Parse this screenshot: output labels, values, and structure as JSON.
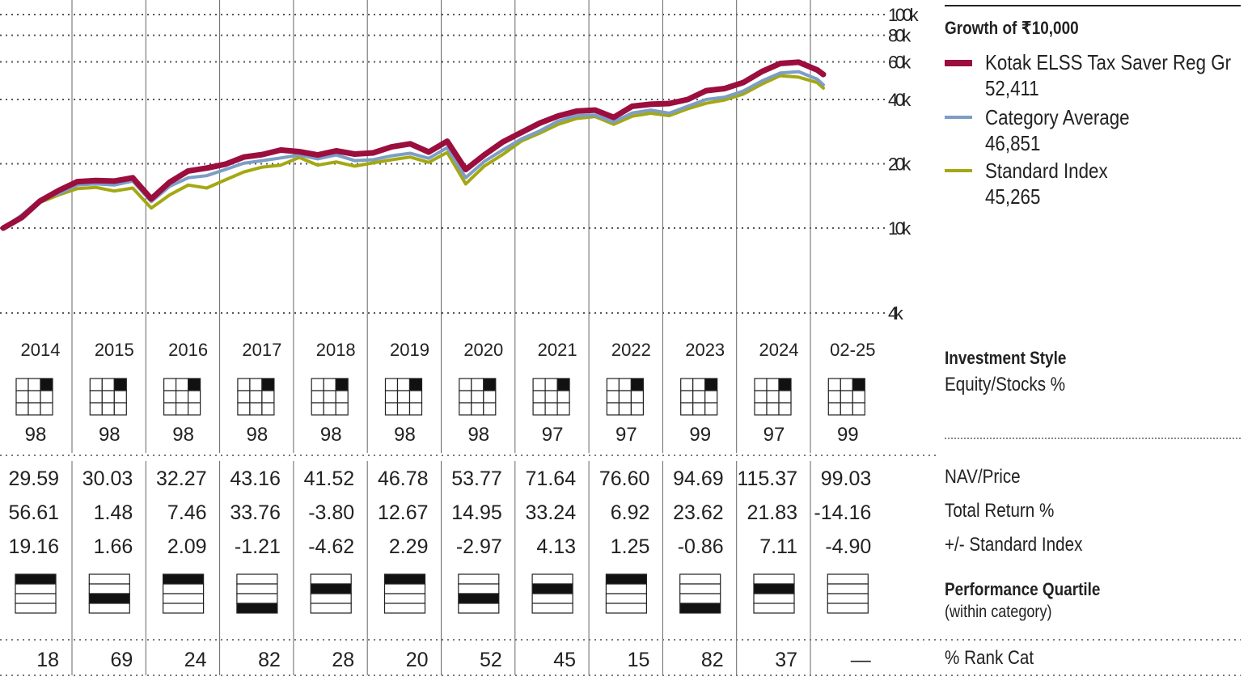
{
  "chart_data": {
    "type": "line",
    "title": "Growth of ₹10,000",
    "y_scale": "log",
    "ylim": [
      4000,
      100000
    ],
    "y_ticks": [
      {
        "value": 100000,
        "label": "100k"
      },
      {
        "value": 80000,
        "label": "80k"
      },
      {
        "value": 60000,
        "label": "60k"
      },
      {
        "value": 40000,
        "label": "40k"
      },
      {
        "value": 20000,
        "label": "20k"
      },
      {
        "value": 10000,
        "label": "10k"
      },
      {
        "value": 4000,
        "label": "4k"
      }
    ],
    "xlim": [
      "2014-01",
      "2025-02"
    ],
    "x": [
      "2014-01",
      "2014-04",
      "2014-07",
      "2014-10",
      "2015-01",
      "2015-04",
      "2015-07",
      "2015-10",
      "2016-01",
      "2016-04",
      "2016-07",
      "2016-10",
      "2017-01",
      "2017-04",
      "2017-07",
      "2017-10",
      "2018-01",
      "2018-04",
      "2018-07",
      "2018-10",
      "2019-01",
      "2019-04",
      "2019-07",
      "2019-10",
      "2020-01",
      "2020-04",
      "2020-07",
      "2020-10",
      "2021-01",
      "2021-04",
      "2021-07",
      "2021-10",
      "2022-01",
      "2022-04",
      "2022-07",
      "2022-10",
      "2023-01",
      "2023-04",
      "2023-07",
      "2023-10",
      "2024-01",
      "2024-04",
      "2024-07",
      "2024-10",
      "2025-01",
      "2025-02"
    ],
    "series": [
      {
        "name": "Kotak ELSS Tax Saver Reg Gr",
        "value_label": "52,411",
        "color": "#9b0e3e",
        "values": [
          10000,
          11200,
          13400,
          15000,
          16500,
          16700,
          16600,
          17200,
          13700,
          16400,
          18500,
          19100,
          19900,
          21500,
          22100,
          23200,
          22800,
          22000,
          23000,
          22200,
          22500,
          24000,
          24800,
          22700,
          25500,
          18800,
          22000,
          25300,
          28000,
          31000,
          33500,
          35300,
          35700,
          33000,
          37200,
          38000,
          38300,
          40000,
          44000,
          45000,
          48000,
          54000,
          59000,
          59800,
          55000,
          52411
        ]
      },
      {
        "name": "Category Average",
        "value_label": "46,851",
        "color": "#7c9ec6",
        "values": [
          10000,
          11500,
          13600,
          14500,
          15900,
          16100,
          15900,
          16600,
          13300,
          15700,
          17200,
          17600,
          18800,
          20100,
          20700,
          21300,
          22000,
          21100,
          22000,
          20700,
          20900,
          21800,
          22400,
          21200,
          23800,
          17200,
          20500,
          23200,
          26100,
          28500,
          31700,
          33600,
          33800,
          31400,
          34600,
          35700,
          34500,
          37200,
          40000,
          41000,
          43800,
          48800,
          53200,
          54000,
          49800,
          46851
        ]
      },
      {
        "name": "Standard Index",
        "value_label": "45,265",
        "color": "#a4a812",
        "values": [
          10000,
          11100,
          13200,
          14300,
          15300,
          15500,
          14900,
          15400,
          12400,
          14300,
          15900,
          15400,
          16800,
          18300,
          19300,
          19700,
          21400,
          19700,
          20400,
          19500,
          20200,
          20900,
          21500,
          20300,
          22600,
          16100,
          19500,
          22100,
          25500,
          27800,
          30600,
          32600,
          33300,
          30600,
          33400,
          34500,
          33600,
          36200,
          38400,
          39800,
          42400,
          47200,
          51700,
          50900,
          48000,
          45265
        ]
      }
    ],
    "legend_placement": "right",
    "grid": "horizontal dotted, vertical year dividers"
  },
  "years": [
    "2014",
    "2015",
    "2016",
    "2017",
    "2018",
    "2019",
    "2020",
    "2021",
    "2022",
    "2023",
    "2024",
    "02-25"
  ],
  "style_box": {
    "active_cell": "top-right"
  },
  "equity_pct": [
    "98",
    "98",
    "98",
    "98",
    "98",
    "98",
    "98",
    "97",
    "97",
    "99",
    "97",
    "99"
  ],
  "nav_price": [
    "29.59",
    "30.03",
    "32.27",
    "43.16",
    "41.52",
    "46.78",
    "53.77",
    "71.64",
    "76.60",
    "94.69",
    "115.37",
    "99.03"
  ],
  "total_return": [
    "56.61",
    "1.48",
    "7.46",
    "33.76",
    "-3.80",
    "12.67",
    "14.95",
    "33.24",
    "6.92",
    "23.62",
    "21.83",
    "-14.16"
  ],
  "plus_minus_index": [
    "19.16",
    "1.66",
    "2.09",
    "-1.21",
    "-4.62",
    "2.29",
    "-2.97",
    "4.13",
    "1.25",
    "-0.86",
    "7.11",
    "-4.90"
  ],
  "quartile": [
    1,
    3,
    1,
    4,
    2,
    1,
    3,
    2,
    1,
    4,
    2,
    0
  ],
  "rank_cat": [
    "18",
    "69",
    "24",
    "82",
    "28",
    "20",
    "52",
    "45",
    "15",
    "82",
    "37",
    "—"
  ],
  "labels": {
    "investment_style": "Investment Style",
    "equity_stocks": "Equity/Stocks %",
    "nav_price": "NAV/Price",
    "total_return": "Total Return %",
    "plus_minus": "+/- Standard Index",
    "performance_quartile": "Performance Quartile",
    "within_category": "(within category)",
    "rank_cat": "% Rank Cat"
  }
}
